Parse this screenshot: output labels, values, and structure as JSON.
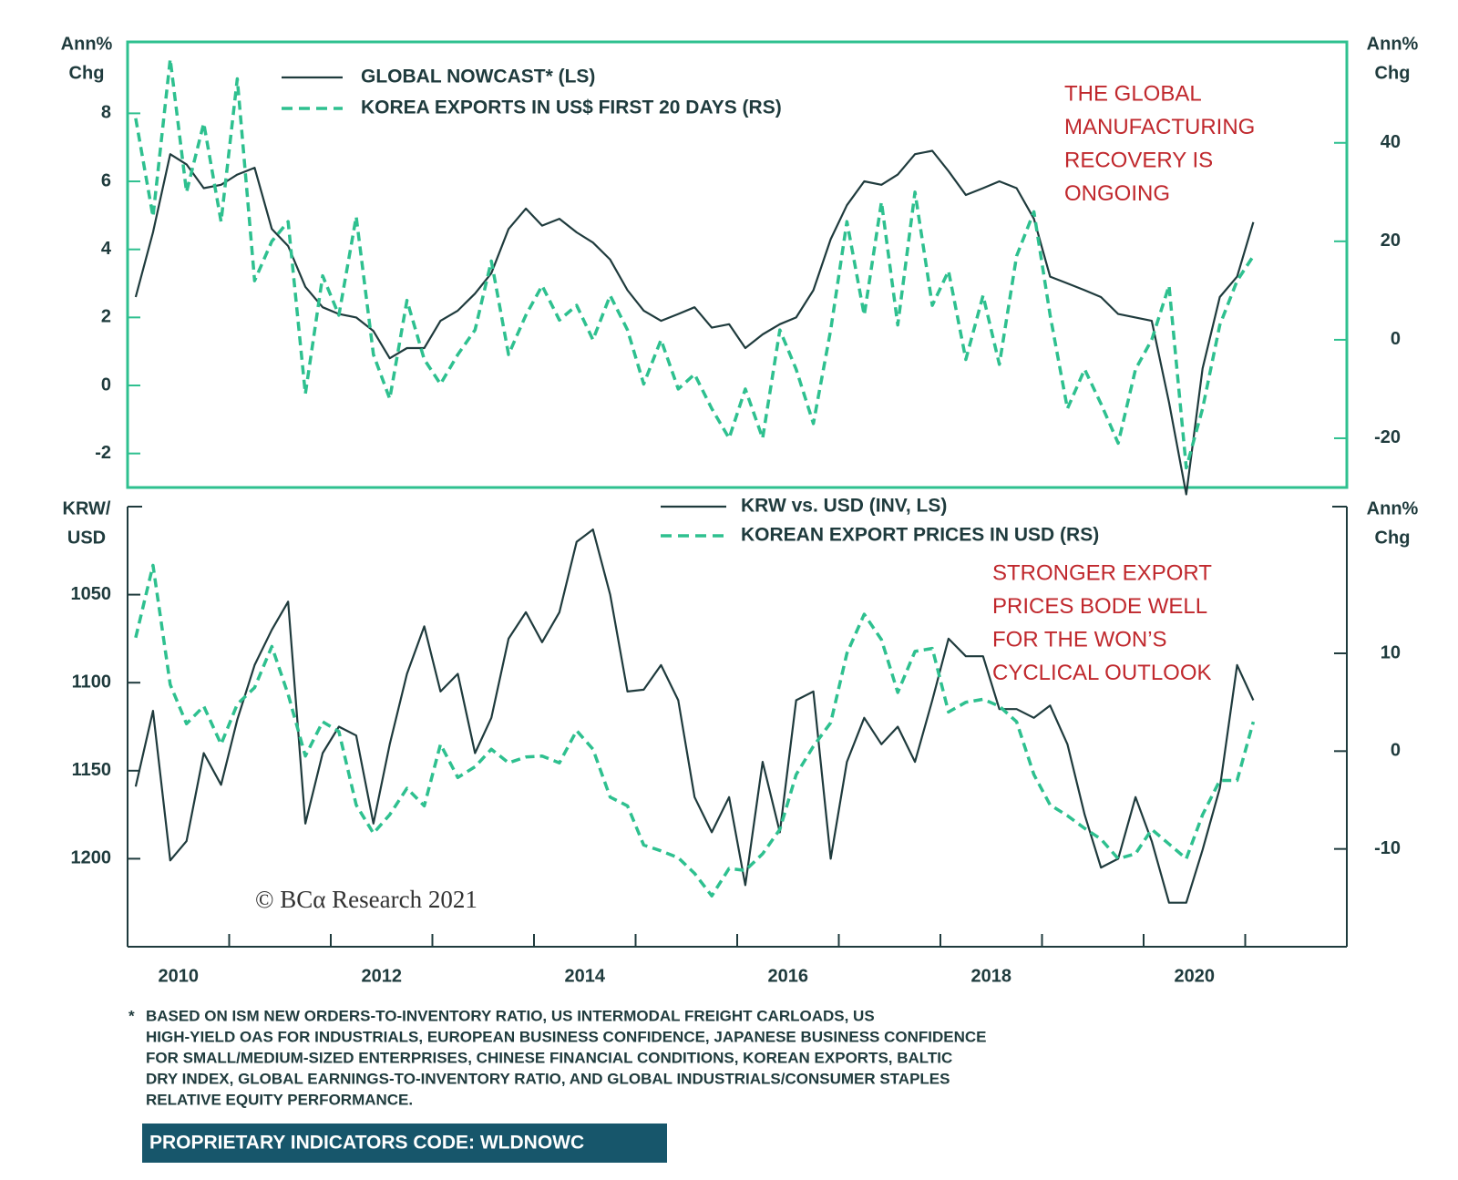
{
  "chart_data": [
    {
      "type": "line",
      "ylabel": [
        "Ann%",
        "Chg"
      ],
      "y2label": [
        "Ann%",
        "Chg"
      ],
      "annotation": [
        "THE GLOBAL",
        "MANUFACTURING",
        "RECOVERY IS",
        "ONGOING"
      ],
      "xlim": [
        2010,
        2022
      ],
      "ylim": [
        -3,
        10.1
      ],
      "y2lim": [
        -30,
        60.5
      ],
      "yticks": [
        -2,
        0,
        2,
        4,
        6,
        8
      ],
      "y2ticks": [
        -20,
        0,
        20,
        40
      ],
      "x": [
        2010.08,
        2010.25,
        2010.42,
        2010.58,
        2010.75,
        2010.92,
        2011.08,
        2011.25,
        2011.42,
        2011.58,
        2011.75,
        2011.92,
        2012.08,
        2012.25,
        2012.42,
        2012.58,
        2012.75,
        2012.92,
        2013.08,
        2013.25,
        2013.42,
        2013.58,
        2013.75,
        2013.92,
        2014.08,
        2014.25,
        2014.42,
        2014.58,
        2014.75,
        2014.92,
        2015.08,
        2015.25,
        2015.42,
        2015.58,
        2015.75,
        2015.92,
        2016.08,
        2016.25,
        2016.42,
        2016.58,
        2016.75,
        2016.92,
        2017.08,
        2017.25,
        2017.42,
        2017.58,
        2017.75,
        2017.92,
        2018.08,
        2018.25,
        2018.42,
        2018.58,
        2018.75,
        2018.92,
        2019.08,
        2019.25,
        2019.42,
        2019.58,
        2019.75,
        2019.92,
        2020.08,
        2020.25,
        2020.42,
        2020.58,
        2020.75,
        2020.92,
        2021.08
      ],
      "series": [
        {
          "name": "GLOBAL NOWCAST* (LS)",
          "color": "#1f3b3d",
          "style": "solid",
          "values": [
            2.6,
            4.5,
            6.8,
            6.5,
            5.8,
            5.9,
            6.2,
            6.4,
            4.6,
            4.1,
            2.9,
            2.3,
            2.1,
            2.0,
            1.6,
            0.8,
            1.1,
            1.1,
            1.9,
            2.2,
            2.7,
            3.3,
            4.6,
            5.2,
            4.7,
            4.9,
            4.5,
            4.2,
            3.7,
            2.8,
            2.2,
            1.9,
            2.1,
            2.3,
            1.7,
            1.8,
            1.1,
            1.5,
            1.8,
            2.0,
            2.8,
            4.3,
            5.3,
            6.0,
            5.9,
            6.2,
            6.8,
            6.9,
            6.3,
            5.6,
            5.8,
            6.0,
            5.8,
            4.9,
            3.2,
            3.0,
            2.8,
            2.6,
            2.1,
            2.0,
            1.9,
            -0.5,
            -3.2,
            0.5,
            2.6,
            3.2,
            4.8
          ]
        },
        {
          "name": "KOREA EXPORTS IN US$ FIRST 20 DAYS (RS)",
          "color": "#2ec08f",
          "style": "dashed",
          "axis": "y2",
          "values": [
            45,
            25,
            57,
            30,
            44,
            24,
            53,
            12,
            20,
            24,
            -11,
            13,
            5,
            25,
            -3,
            -12,
            8,
            -4,
            -9,
            -3,
            2,
            16,
            -3,
            5,
            11,
            4,
            7,
            0,
            9,
            2,
            -9,
            0,
            -10,
            -7,
            -14,
            -20,
            -10,
            -20,
            2,
            -6,
            -17,
            2,
            24,
            5,
            28,
            3,
            30,
            7,
            14,
            -4,
            9,
            -5,
            17,
            26,
            5,
            -14,
            -6,
            -13,
            -21,
            -6,
            0,
            11,
            -26,
            -14,
            3,
            12,
            17
          ]
        }
      ]
    },
    {
      "type": "line",
      "ylabel": [
        "KRW/",
        "USD"
      ],
      "y2label": [
        "Ann%",
        "Chg"
      ],
      "annotation": [
        "STRONGER EXPORT",
        "PRICES BODE WELL",
        "FOR THE WON’S",
        "CYCLICAL OUTLOOK"
      ],
      "xlim": [
        2010,
        2022
      ],
      "ylim": [
        1250,
        1000
      ],
      "y2lim": [
        -20,
        25
      ],
      "yticks": [
        1050,
        1100,
        1150,
        1200
      ],
      "y2ticks": [
        -10,
        0,
        10
      ],
      "xticks": [
        {
          "value": 2010.5,
          "label": "2010"
        },
        {
          "value": 2012.5,
          "label": "2012"
        },
        {
          "value": 2014.5,
          "label": "2014"
        },
        {
          "value": 2016.5,
          "label": "2016"
        },
        {
          "value": 2018.5,
          "label": "2018"
        },
        {
          "value": 2020.5,
          "label": "2020"
        }
      ],
      "xminorticks": [
        2011,
        2012,
        2013,
        2014,
        2015,
        2016,
        2017,
        2018,
        2019,
        2020,
        2021
      ],
      "x": [
        2010.08,
        2010.25,
        2010.42,
        2010.58,
        2010.75,
        2010.92,
        2011.08,
        2011.25,
        2011.42,
        2011.58,
        2011.75,
        2011.92,
        2012.08,
        2012.25,
        2012.42,
        2012.58,
        2012.75,
        2012.92,
        2013.08,
        2013.25,
        2013.42,
        2013.58,
        2013.75,
        2013.92,
        2014.08,
        2014.25,
        2014.42,
        2014.58,
        2014.75,
        2014.92,
        2015.08,
        2015.25,
        2015.42,
        2015.58,
        2015.75,
        2015.92,
        2016.08,
        2016.25,
        2016.42,
        2016.58,
        2016.75,
        2016.92,
        2017.08,
        2017.25,
        2017.42,
        2017.58,
        2017.75,
        2017.92,
        2018.08,
        2018.25,
        2018.42,
        2018.58,
        2018.75,
        2018.92,
        2019.08,
        2019.25,
        2019.42,
        2019.58,
        2019.75,
        2019.92,
        2020.08,
        2020.25,
        2020.42,
        2020.58,
        2020.75,
        2020.92,
        2021.08
      ],
      "series": [
        {
          "name": "KRW vs. USD (INV, LS)",
          "color": "#1f3b3d",
          "style": "solid",
          "values": [
            1159,
            1116,
            1201,
            1190,
            1140,
            1158,
            1121,
            1090,
            1070,
            1054,
            1180,
            1140,
            1125,
            1130,
            1180,
            1135,
            1095,
            1068,
            1105,
            1095,
            1140,
            1120,
            1075,
            1060,
            1077,
            1060,
            1020,
            1013,
            1050,
            1105,
            1104,
            1090,
            1110,
            1165,
            1185,
            1165,
            1215,
            1145,
            1185,
            1110,
            1105,
            1200,
            1145,
            1120,
            1135,
            1125,
            1145,
            1110,
            1075,
            1085,
            1085,
            1115,
            1115,
            1120,
            1113,
            1135,
            1175,
            1205,
            1200,
            1165,
            1190,
            1225,
            1225,
            1195,
            1160,
            1090,
            1110
          ]
        },
        {
          "name": "KOREAN EXPORT PRICES IN USD (RS)",
          "color": "#2ec08f",
          "style": "dashed",
          "axis": "y2",
          "values": [
            11.6,
            19,
            6.8,
            2.8,
            4.6,
            0.7,
            4.8,
            6.5,
            10.7,
            5.8,
            -0.5,
            3.0,
            2.0,
            -5.5,
            -8.4,
            -6.5,
            -3.8,
            -5.6,
            0.7,
            -2.7,
            -1.6,
            0.2,
            -1.2,
            -0.6,
            -0.5,
            -1.2,
            2.1,
            0.2,
            -4.7,
            -5.6,
            -9.6,
            -10.2,
            -10.9,
            -12.5,
            -14.8,
            -12.0,
            -12.2,
            -10.5,
            -8.0,
            -2.4,
            0.5,
            2.9,
            10.0,
            14.0,
            11.4,
            6.0,
            10.2,
            10.5,
            4.0,
            5.0,
            5.3,
            4.6,
            3.0,
            -2.4,
            -5.5,
            -6.6,
            -7.9,
            -9.0,
            -11.0,
            -10.5,
            -8.0,
            -9.5,
            -11.0,
            -6.5,
            -3.0,
            -3.0,
            3.0
          ]
        }
      ]
    }
  ],
  "watermark": "© BCα Research 2021",
  "footnote_marker": "*",
  "footnote": [
    "BASED ON ISM NEW ORDERS-TO-INVENTORY RATIO, US INTERMODAL FREIGHT CARLOADS, US",
    "HIGH-YIELD OAS FOR INDUSTRIALS, EUROPEAN BUSINESS CONFIDENCE, JAPANESE BUSINESS CONFIDENCE",
    "FOR SMALL/MEDIUM-SIZED ENTERPRISES, CHINESE FINANCIAL CONDITIONS, KOREAN EXPORTS, BALTIC",
    "DRY INDEX, GLOBAL EARNINGS-TO-INVENTORY RATIO, AND GLOBAL INDUSTRIALS/CONSUMER STAPLES",
    "RELATIVE EQUITY PERFORMANCE."
  ],
  "code_label": "PROPRIETARY INDICATORS CODE: WLDNOWC"
}
